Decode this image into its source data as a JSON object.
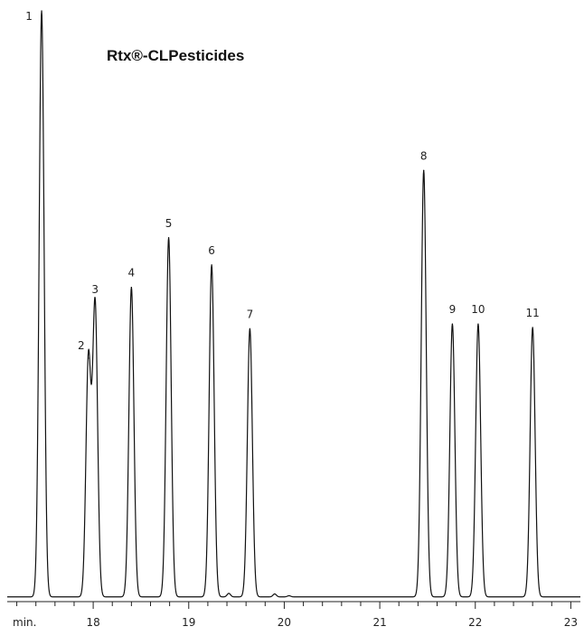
{
  "chart_data": {
    "type": "line",
    "title": "Rtx®-CLPesticides",
    "xlabel": "min.",
    "ylabel": "",
    "xlim": [
      17.1,
      23.1
    ],
    "ylim": [
      0,
      100
    ],
    "x_ticks": [
      18,
      19,
      20,
      21,
      22,
      23
    ],
    "minor_tick_step": 0.2,
    "grid": false,
    "baseline": 0.8,
    "peaks": [
      {
        "label": "1",
        "x": 17.46,
        "y": 100.0
      },
      {
        "label": "2",
        "x": 17.95,
        "y": 41.2
      },
      {
        "label": "3",
        "x": 18.02,
        "y": 50.4
      },
      {
        "label": "4",
        "x": 18.4,
        "y": 53.2
      },
      {
        "label": "5",
        "x": 18.79,
        "y": 61.6
      },
      {
        "label": "6",
        "x": 19.24,
        "y": 57.0
      },
      {
        "label": "7",
        "x": 19.64,
        "y": 46.2
      },
      {
        "label": "8",
        "x": 21.46,
        "y": 73.0
      },
      {
        "label": "9",
        "x": 21.76,
        "y": 47.0
      },
      {
        "label": "10",
        "x": 22.03,
        "y": 47.0
      },
      {
        "label": "11",
        "x": 22.6,
        "y": 46.4
      }
    ],
    "minor_bumps": [
      {
        "x": 19.42,
        "y": 1.4
      },
      {
        "x": 19.9,
        "y": 1.3
      },
      {
        "x": 20.05,
        "y": 1.0
      }
    ]
  }
}
